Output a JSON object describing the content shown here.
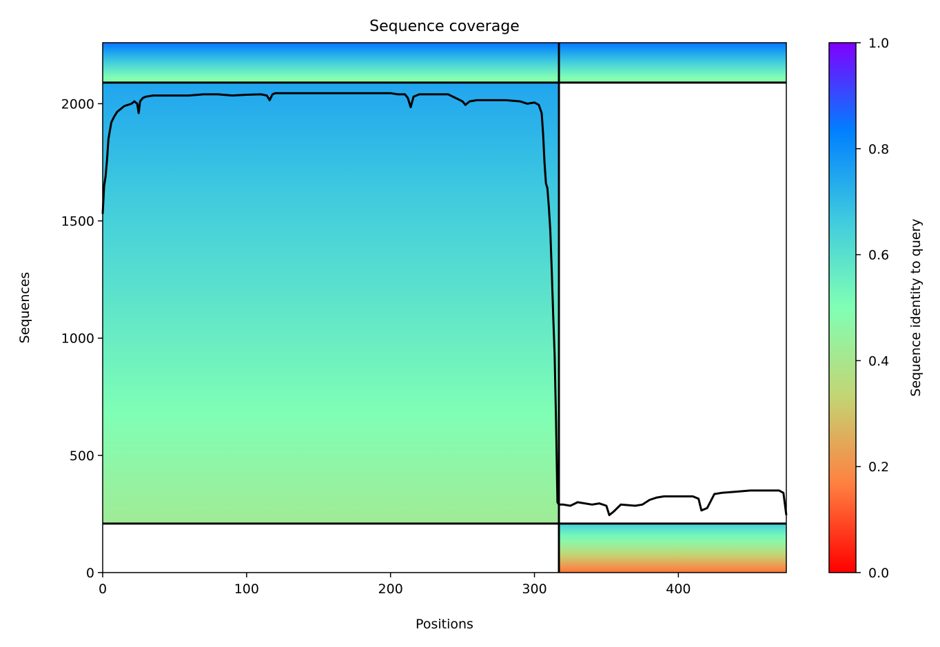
{
  "chart_data": {
    "type": "heatmap",
    "title": "Sequence coverage",
    "xlabel": "Positions",
    "ylabel": "Sequences",
    "xlim": [
      0,
      475
    ],
    "ylim": [
      0,
      2260
    ],
    "xticks": [
      0,
      100,
      200,
      300,
      400
    ],
    "yticks": [
      0,
      500,
      1000,
      1500,
      2000
    ],
    "grid": false,
    "colormap": "rainbow",
    "colorbar": {
      "label": "Sequence identity to query",
      "range": [
        0,
        1
      ],
      "ticks": [
        "0.0",
        "0.2",
        "0.4",
        "0.6",
        "0.8",
        "1.0"
      ],
      "colors": [
        "#ff0000",
        "#ff8040",
        "#c3d574",
        "#80ffb4",
        "#3fcadf",
        "#0080ff",
        "#8000ff"
      ]
    },
    "separators": {
      "vertical_x": [
        317
      ],
      "horizontal_y": [
        209,
        2090
      ]
    },
    "blocks": [
      {
        "x": [
          0,
          317
        ],
        "y": [
          209,
          2090
        ],
        "identity_range": [
          0.42,
          0.75
        ]
      },
      {
        "x": [
          0,
          317
        ],
        "y": [
          2090,
          2260
        ],
        "identity_range": [
          0.45,
          0.85
        ]
      },
      {
        "x": [
          317,
          475
        ],
        "y": [
          2090,
          2260
        ],
        "identity_range": [
          0.45,
          0.85
        ]
      },
      {
        "x": [
          317,
          475
        ],
        "y": [
          0,
          209
        ],
        "identity_range": [
          0.15,
          0.65
        ]
      }
    ],
    "series": [
      {
        "type": "line",
        "color": "#000000",
        "x": [
          0,
          1,
          2,
          3,
          4,
          6,
          8,
          10,
          12,
          15,
          20,
          22,
          24,
          25,
          26,
          28,
          30,
          35,
          40,
          50,
          60,
          70,
          80,
          90,
          100,
          110,
          114,
          116,
          118,
          120,
          125,
          130,
          140,
          150,
          160,
          170,
          180,
          190,
          200,
          205,
          210,
          212,
          214,
          216,
          220,
          230,
          240,
          245,
          250,
          252,
          255,
          260,
          270,
          280,
          290,
          295,
          300,
          303,
          305,
          306,
          307,
          308,
          309,
          310,
          311,
          312,
          313,
          314,
          315,
          316,
          317,
          320,
          325,
          330,
          340,
          345,
          350,
          352,
          355,
          360,
          370,
          375,
          380,
          385,
          390,
          400,
          410,
          414,
          416,
          420,
          425,
          430,
          440,
          450,
          460,
          470,
          473,
          475
        ],
        "y": [
          1530,
          1650,
          1690,
          1760,
          1850,
          1920,
          1945,
          1965,
          1975,
          1990,
          2000,
          2010,
          2000,
          1960,
          2010,
          2025,
          2030,
          2035,
          2035,
          2035,
          2035,
          2040,
          2040,
          2035,
          2038,
          2040,
          2035,
          2015,
          2040,
          2045,
          2045,
          2045,
          2045,
          2045,
          2045,
          2045,
          2045,
          2045,
          2045,
          2040,
          2040,
          2025,
          1985,
          2030,
          2040,
          2040,
          2040,
          2025,
          2010,
          1995,
          2010,
          2015,
          2015,
          2015,
          2010,
          2000,
          2005,
          1995,
          1960,
          1870,
          1750,
          1660,
          1640,
          1560,
          1460,
          1290,
          1100,
          930,
          640,
          300,
          290,
          290,
          285,
          300,
          290,
          295,
          285,
          245,
          260,
          290,
          285,
          290,
          310,
          320,
          325,
          325,
          325,
          315,
          265,
          275,
          335,
          340,
          345,
          350,
          350,
          350,
          340,
          245
        ]
      }
    ]
  }
}
